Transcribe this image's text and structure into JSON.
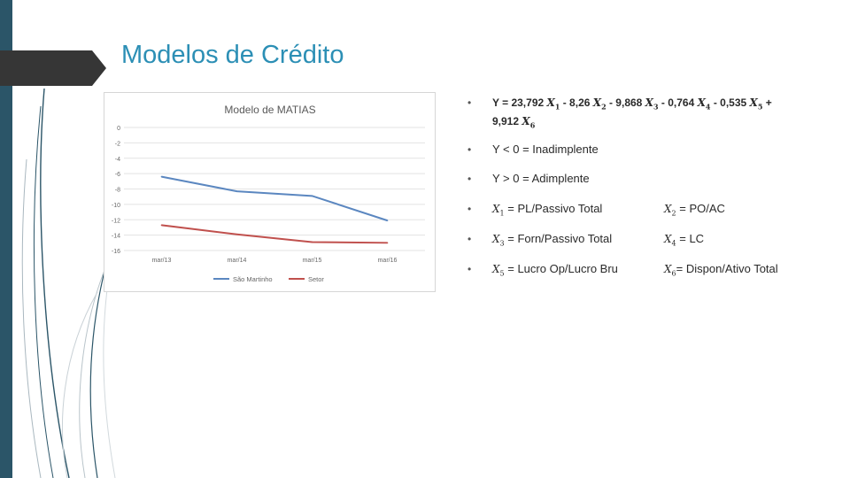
{
  "slide": {
    "title": "Modelos de Crédito"
  },
  "chart_data": {
    "type": "line",
    "title": "Modelo de MATIAS",
    "categories": [
      "mar/13",
      "mar/14",
      "mar/15",
      "mar/16"
    ],
    "y_ticks": [
      "0",
      "-2",
      "-4",
      "-6",
      "-8",
      "-10",
      "-12",
      "-14",
      "-16"
    ],
    "ylim": [
      -16,
      0
    ],
    "series": [
      {
        "name": "São Martinho",
        "color": "#5b87c0",
        "values": [
          -6.4,
          -8.3,
          -8.9,
          -12.1
        ]
      },
      {
        "name": "Setor",
        "color": "#c0504d",
        "values": [
          -12.7,
          -13.9,
          -14.9,
          -15.0
        ]
      }
    ],
    "grid": true,
    "legend": "bottom"
  },
  "bullets": {
    "marker": "•",
    "formula": {
      "parts": [
        "Y = 23,792 ",
        " - 8,26 ",
        " - 9,868 ",
        " - 0,764 ",
        " - 0,535 ",
        " + ",
        "9,912 "
      ],
      "vars": [
        "X",
        "X",
        "X",
        "X",
        "X",
        "X"
      ],
      "subs": [
        "1",
        "2",
        "3",
        "4",
        "5",
        "6"
      ]
    },
    "rule_negative": "Y < 0 = Inadimplente",
    "rule_positive": "Y > 0 = Adimplente",
    "definitions": [
      {
        "left_var": "X",
        "left_sub": "1",
        "left_text": " = PL/Passivo Total",
        "right_var": "X",
        "right_sub": "2",
        "right_text": " = PO/AC"
      },
      {
        "left_var": "X",
        "left_sub": "3",
        "left_text": " = Forn/Passivo Total",
        "right_var": "X",
        "right_sub": "4",
        "right_text": " = LC"
      },
      {
        "left_var": "X",
        "left_sub": "5",
        "left_text": " = Lucro Op/Lucro Bru",
        "right_var": "X",
        "right_sub": "6",
        "right_text": "= Dispon/Ativo Total"
      }
    ]
  }
}
